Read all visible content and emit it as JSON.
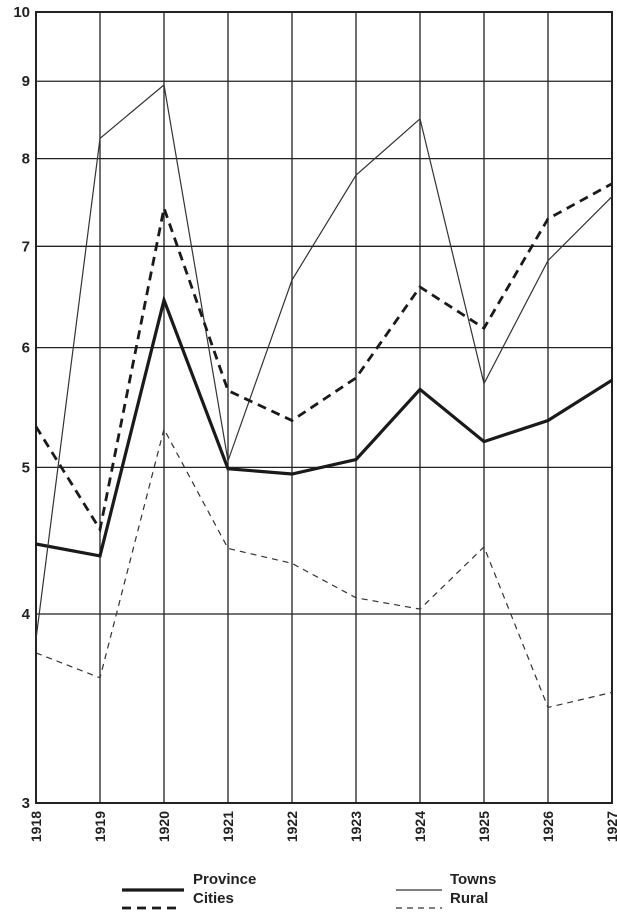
{
  "chart_data": {
    "type": "line",
    "title": "",
    "xlabel": "",
    "ylabel": "",
    "scale": "log",
    "grid": true,
    "legend_position": "bottom",
    "x": [
      "1918",
      "1919",
      "1920",
      "1921",
      "1922",
      "1923",
      "1924",
      "1925",
      "1926",
      "1927"
    ],
    "yticks": [
      "3",
      "4",
      "5",
      "6",
      "7",
      "8",
      "9",
      "10"
    ],
    "ylim": [
      3,
      10
    ],
    "series": [
      {
        "name": "Province",
        "style": "thick-solid",
        "color": "#1a1a1a",
        "values": [
          4.45,
          4.37,
          6.45,
          4.99,
          4.95,
          5.06,
          5.63,
          5.2,
          5.37,
          5.71
        ]
      },
      {
        "name": "Towns",
        "style": "thin-solid",
        "color": "#333333",
        "values": [
          3.85,
          8.25,
          8.95,
          5.05,
          6.65,
          7.8,
          8.5,
          5.68,
          6.85,
          7.55
        ]
      },
      {
        "name": "Cities",
        "style": "thick-dashed",
        "color": "#1a1a1a",
        "values": [
          5.32,
          4.55,
          7.42,
          5.62,
          5.37,
          5.73,
          6.58,
          6.18,
          7.3,
          7.7
        ]
      },
      {
        "name": "Rural",
        "style": "thin-dashed",
        "color": "#333333",
        "values": [
          3.77,
          3.63,
          5.3,
          4.42,
          4.32,
          4.1,
          4.03,
          4.43,
          3.47,
          3.55
        ]
      }
    ]
  }
}
